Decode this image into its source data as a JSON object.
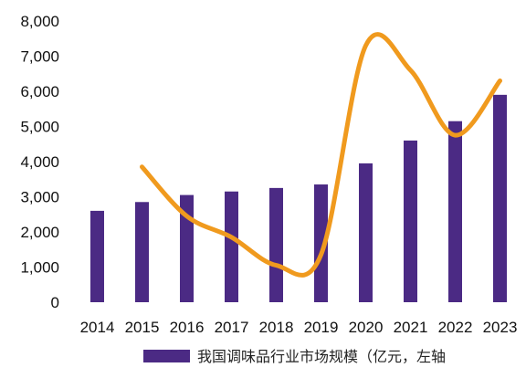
{
  "chart_data": {
    "type": "bar",
    "categories": [
      "2014",
      "2015",
      "2016",
      "2017",
      "2018",
      "2019",
      "2020",
      "2021",
      "2022",
      "2023"
    ],
    "series": [
      {
        "name": "我国调味品行业市场规模（亿元，左轴",
        "type": "bar",
        "values": [
          2600,
          2850,
          3050,
          3150,
          3250,
          3350,
          3950,
          4600,
          5150,
          5900
        ],
        "color": "#4b2a84"
      },
      {
        "name": "",
        "type": "line",
        "values": [
          null,
          3850,
          2450,
          1850,
          1050,
          1350,
          7300,
          6600,
          4750,
          6300
        ],
        "color": "#f09a1e"
      }
    ],
    "ylim": [
      0,
      8000
    ],
    "yticks": [
      "0",
      "1,000",
      "2,000",
      "3,000",
      "4,000",
      "5,000",
      "6,000",
      "7,000",
      "8,000"
    ],
    "xlabel": "",
    "ylabel": "",
    "grid": false,
    "legend_position": "bottom"
  }
}
